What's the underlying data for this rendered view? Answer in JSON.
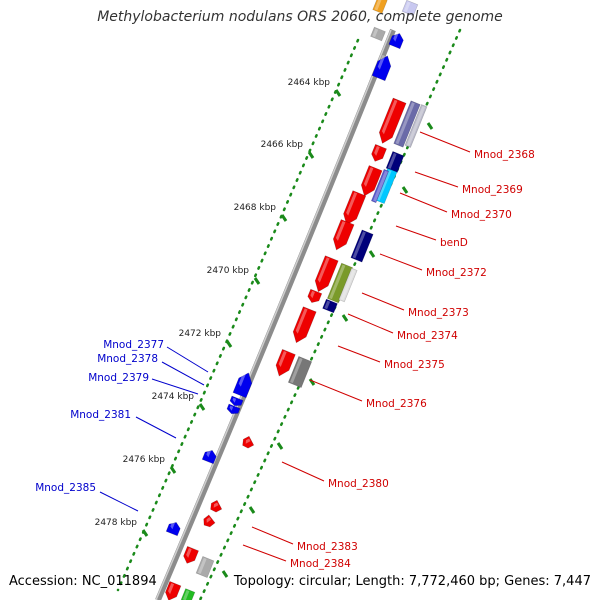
{
  "header": {
    "title": "Methylobacterium nodulans ORS 2060, complete genome"
  },
  "footer": {
    "accession": "Accession: NC_011894",
    "summary": "Topology: circular; Length: 7,772,460 bp; Genes: 7,447"
  },
  "colors": {
    "backbone": "#8c8c8c",
    "tick": "#1a8a1a",
    "forward_label": "#d00000",
    "reverse_label": "#0000cc",
    "gene_red": "#ee0000",
    "gene_blue": "#0000ee",
    "gene_navy": "#00007a",
    "gene_gray": "#aaaaaa",
    "gene_olive": "#7a9a2a",
    "gene_cyan": "#00c8ff",
    "gene_orange": "#f0a020",
    "gene_green": "#22bb22"
  },
  "scale_labels": [
    "2464 kbp",
    "2466 kbp",
    "2468 kbp",
    "2470 kbp",
    "2472 kbp",
    "2474 kbp",
    "2476 kbp",
    "2478 kbp"
  ],
  "forward_gene_labels": [
    "Mnod_2368",
    "Mnod_2369",
    "Mnod_2370",
    "benD",
    "Mnod_2372",
    "Mnod_2373",
    "Mnod_2374",
    "Mnod_2375",
    "Mnod_2376",
    "Mnod_2380",
    "Mnod_2383",
    "Mnod_2384"
  ],
  "reverse_gene_labels": [
    "Mnod_2377",
    "Mnod_2378",
    "Mnod_2379",
    "Mnod_2381",
    "Mnod_2385"
  ]
}
